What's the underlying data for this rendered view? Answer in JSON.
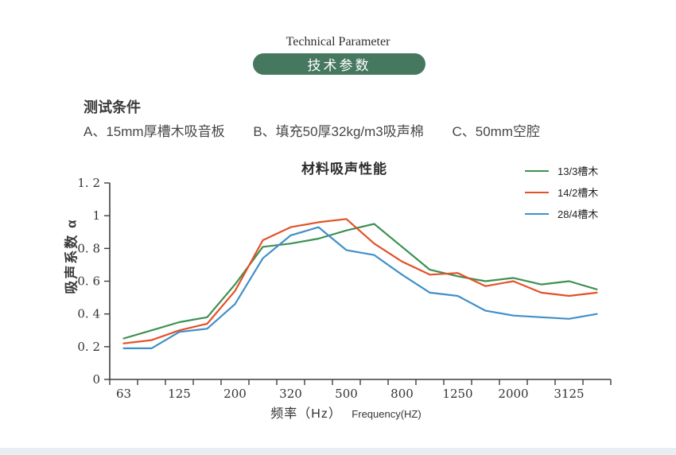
{
  "header": {
    "title_en": "Technical Parameter",
    "badge_cn": "技术参数",
    "badge_color": "#45785f"
  },
  "conditions": {
    "heading": "测试条件",
    "items": [
      "A、15mm厚槽木吸音板",
      "B、填充50厚32kg/m3吸声棉",
      "C、50mm空腔"
    ]
  },
  "chart_data": {
    "type": "line",
    "title": "材料吸声性能",
    "ylabel": "吸声系数 α",
    "xlabel_cn": "频率（Hz）",
    "xlabel_en": "Frequency(HZ)",
    "ylim": [
      0,
      1.2
    ],
    "grid": false,
    "legend_position": "top-right",
    "axis_color": "#3f3f3f",
    "tick_label_color": "#333333",
    "n_points": 18,
    "x_tick_labels": [
      "63",
      "125",
      "200",
      "320",
      "500",
      "800",
      "1250",
      "2000",
      "3125"
    ],
    "x_labels_on_even_points": true,
    "y_ticks": [
      {
        "v": 1.2,
        "label": "1. 2"
      },
      {
        "v": 1.0,
        "label": "1"
      },
      {
        "v": 0.8,
        "label": "0. 8"
      },
      {
        "v": 0.6,
        "label": "0. 6"
      },
      {
        "v": 0.4,
        "label": "0. 4"
      },
      {
        "v": 0.2,
        "label": "0. 2"
      },
      {
        "v": 0.0,
        "label": "0"
      }
    ],
    "series": [
      {
        "name": "13/3槽木",
        "color": "#3d9152",
        "values": [
          0.25,
          0.3,
          0.35,
          0.38,
          0.58,
          0.81,
          0.83,
          0.86,
          0.91,
          0.95,
          0.81,
          0.67,
          0.63,
          0.6,
          0.62,
          0.58,
          0.6,
          0.55
        ]
      },
      {
        "name": "14/2槽木",
        "color": "#e25228",
        "values": [
          0.22,
          0.24,
          0.3,
          0.34,
          0.54,
          0.85,
          0.93,
          0.96,
          0.98,
          0.83,
          0.72,
          0.64,
          0.65,
          0.57,
          0.6,
          0.53,
          0.51,
          0.53
        ]
      },
      {
        "name": "28/4槽木",
        "color": "#418fc9",
        "values": [
          0.19,
          0.19,
          0.29,
          0.31,
          0.46,
          0.74,
          0.88,
          0.93,
          0.79,
          0.76,
          0.64,
          0.53,
          0.51,
          0.42,
          0.39,
          0.38,
          0.37,
          0.4
        ]
      }
    ]
  }
}
